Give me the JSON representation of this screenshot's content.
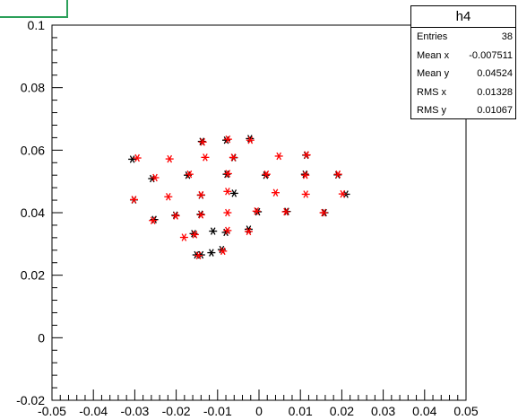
{
  "chart_data": {
    "type": "scatter",
    "title": "",
    "xlabel": "",
    "ylabel": "",
    "xlim": [
      -0.05,
      0.05
    ],
    "ylim": [
      -0.02,
      0.1
    ],
    "x_ticks": [
      "-0.05",
      "-0.04",
      "-0.03",
      "-0.02",
      "-0.01",
      "0",
      "0.01",
      "0.02",
      "0.03",
      "0.04",
      "0.05"
    ],
    "x_tick_values": [
      -0.05,
      -0.04,
      -0.03,
      -0.02,
      -0.01,
      0,
      0.01,
      0.02,
      0.03,
      0.04,
      0.05
    ],
    "y_ticks": [
      "-0.02",
      "0",
      "0.02",
      "0.04",
      "0.06",
      "0.08",
      "0.1"
    ],
    "y_tick_values": [
      -0.02,
      0,
      0.02,
      0.04,
      0.06,
      0.08,
      0.1
    ],
    "grid": false,
    "series": [
      {
        "color": "#000000",
        "marker": "asterisk",
        "points": [
          [
            -0.0306,
            0.0571
          ],
          [
            -0.0258,
            0.0509
          ],
          [
            -0.0138,
            0.0628
          ],
          [
            -0.0079,
            0.0632
          ],
          [
            -0.0022,
            0.0637
          ],
          [
            -0.0172,
            0.052
          ],
          [
            -0.0078,
            0.0523
          ],
          [
            -0.0061,
            0.0576
          ],
          [
            0.0016,
            0.052
          ],
          [
            0.0111,
            0.0523
          ],
          [
            0.0114,
            0.0584
          ],
          [
            0.019,
            0.0521
          ],
          [
            -0.0302,
            0.0441
          ],
          [
            -0.014,
            0.0456
          ],
          [
            -0.006,
            0.0462
          ],
          [
            0.021,
            0.0459
          ],
          [
            -0.0253,
            0.0378
          ],
          [
            -0.0202,
            0.0392
          ],
          [
            -0.0141,
            0.0395
          ],
          [
            -0.008,
            0.0337
          ],
          [
            -0.0025,
            0.0347
          ],
          [
            -0.0003,
            0.0403
          ],
          [
            0.0067,
            0.0404
          ],
          [
            0.0158,
            0.04
          ],
          [
            -0.0158,
            0.0333
          ],
          [
            -0.0111,
            0.0341
          ],
          [
            -0.0151,
            0.0265
          ],
          [
            -0.014,
            0.0265
          ],
          [
            -0.0115,
            0.0272
          ],
          [
            -0.009,
            0.0282
          ]
        ]
      },
      {
        "color": "#ff0000",
        "marker": "asterisk",
        "points": [
          [
            -0.0294,
            0.0575
          ],
          [
            -0.0251,
            0.0512
          ],
          [
            -0.0216,
            0.0572
          ],
          [
            -0.0136,
            0.0626
          ],
          [
            -0.013,
            0.0577
          ],
          [
            -0.0075,
            0.0635
          ],
          [
            -0.0021,
            0.0632
          ],
          [
            -0.0168,
            0.0523
          ],
          [
            -0.0075,
            0.0525
          ],
          [
            -0.0062,
            0.0577
          ],
          [
            0.0018,
            0.0523
          ],
          [
            0.0048,
            0.0581
          ],
          [
            0.0115,
            0.0585
          ],
          [
            0.0112,
            0.052
          ],
          [
            0.0191,
            0.0523
          ],
          [
            -0.0302,
            0.0442
          ],
          [
            -0.0219,
            0.0451
          ],
          [
            -0.014,
            0.0457
          ],
          [
            -0.0076,
            0.0468
          ],
          [
            0.004,
            0.0464
          ],
          [
            0.0113,
            0.0459
          ],
          [
            0.0202,
            0.046
          ],
          [
            -0.0256,
            0.0375
          ],
          [
            -0.0201,
            0.039
          ],
          [
            -0.014,
            0.0393
          ],
          [
            -0.0076,
            0.04
          ],
          [
            -0.0006,
            0.0405
          ],
          [
            0.0065,
            0.0403
          ],
          [
            0.0156,
            0.04
          ],
          [
            -0.0181,
            0.0321
          ],
          [
            -0.0155,
            0.033
          ],
          [
            -0.0076,
            0.0343
          ],
          [
            -0.0025,
            0.034
          ],
          [
            -0.0146,
            0.0263
          ],
          [
            -0.0087,
            0.0277
          ]
        ]
      }
    ]
  },
  "stats": {
    "title": "h4",
    "rows": [
      {
        "label": "Entries",
        "value": "38"
      },
      {
        "label": "Mean x",
        "value": "-0.007511"
      },
      {
        "label": "Mean y",
        "value": "0.04524"
      },
      {
        "label": "RMS x",
        "value": "0.01328"
      },
      {
        "label": "RMS y",
        "value": "0.01067"
      }
    ]
  },
  "colors": {
    "frame": "#000000",
    "title_box": "#2ca05a"
  }
}
